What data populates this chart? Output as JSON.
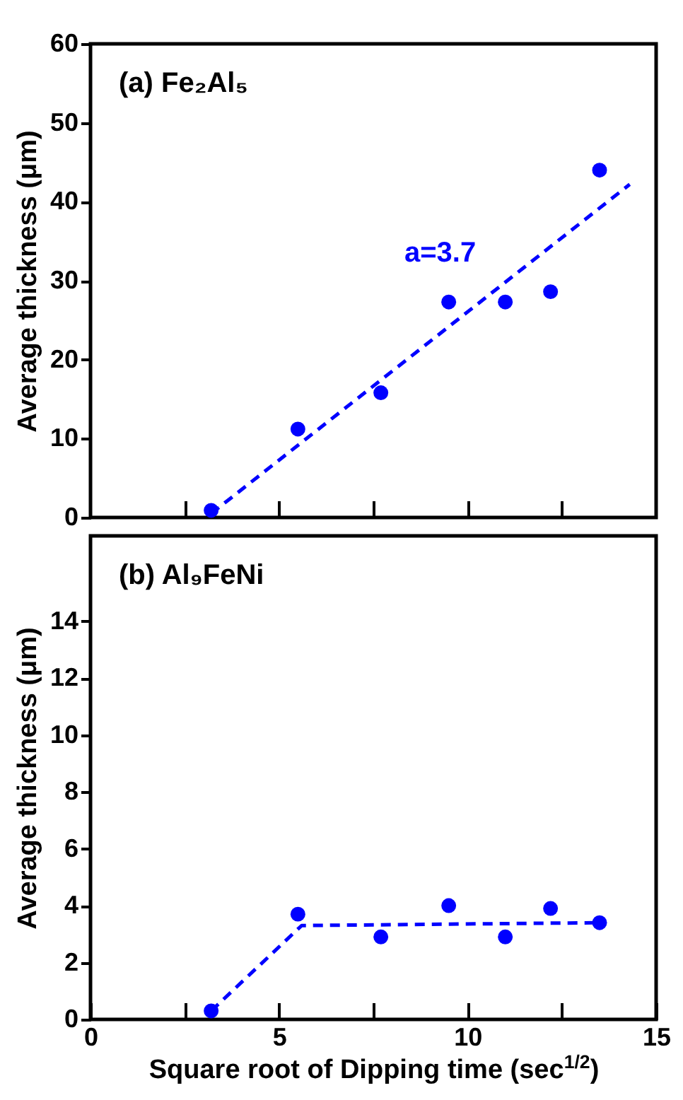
{
  "chart_data": [
    {
      "type": "scatter",
      "ylabel": "Average thickness (μm)",
      "annotations": [
        "(a) Fe₂Al₅",
        "a=3.7"
      ],
      "xlim": [
        0,
        15
      ],
      "xticks": [
        {
          "value": 2.5,
          "label": null
        },
        {
          "value": 5,
          "label": null
        },
        {
          "value": 7.5,
          "label": null
        },
        {
          "value": 10,
          "label": null
        },
        {
          "value": 12.5,
          "label": null
        }
      ],
      "ylim": [
        0,
        60
      ],
      "yticks": [
        0,
        10,
        20,
        30,
        40,
        50,
        60
      ],
      "tick_labels": "y",
      "series": [
        {
          "color": "#0000ff",
          "marker": "circle",
          "x": [
            3.2,
            5.5,
            7.7,
            9.5,
            11.0,
            12.2,
            13.5
          ],
          "values": [
            0.9,
            11.2,
            15.8,
            27.3,
            27.3,
            28.6,
            44.0
          ]
        },
        {
          "type": "line",
          "color": "#0000ff",
          "line_style": "dashed",
          "x": [
            3.2,
            14.3
          ],
          "values": [
            0.5,
            42.2
          ]
        }
      ]
    },
    {
      "type": "scatter",
      "xlabel": "Square root of Dipping time (sec$^{1/2}$)",
      "ylabel": "Average thickness (μm)",
      "annotations": [
        "(b) Al₉FeNi"
      ],
      "xlim": [
        0,
        15
      ],
      "xticks": [
        0,
        {
          "value": 2.5,
          "label": null
        },
        5,
        {
          "value": 7.5,
          "label": null
        },
        10,
        {
          "value": 12.5,
          "label": null
        },
        15
      ],
      "ylim": [
        0,
        17
      ],
      "yticks": [
        0,
        2,
        4,
        6,
        8,
        10,
        12,
        14
      ],
      "series": [
        {
          "color": "#0000ff",
          "marker": "circle",
          "x": [
            3.2,
            5.5,
            7.7,
            9.5,
            11.0,
            12.2,
            13.5
          ],
          "values": [
            0.3,
            3.7,
            2.9,
            4.0,
            2.9,
            3.9,
            3.4
          ]
        },
        {
          "type": "line",
          "color": "#0000ff",
          "line_style": "dashed",
          "x": [
            3.2,
            5.6,
            13.5
          ],
          "values": [
            0.3,
            3.3,
            3.4
          ]
        }
      ]
    }
  ]
}
